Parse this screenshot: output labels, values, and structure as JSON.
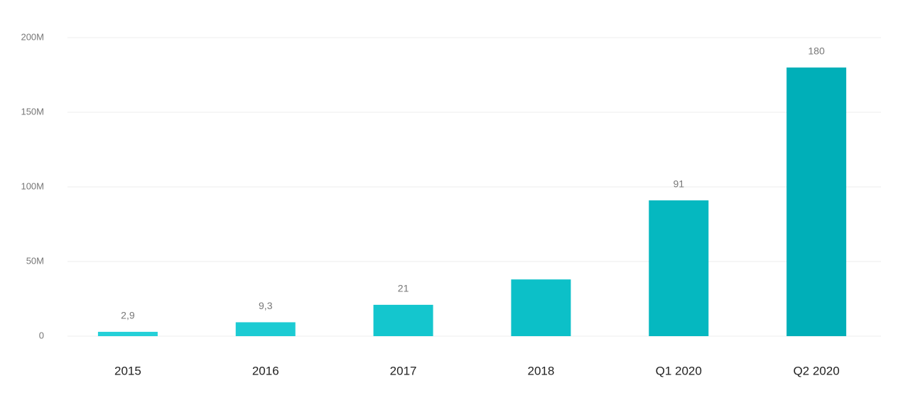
{
  "chart_data": {
    "type": "bar",
    "categories": [
      "2015",
      "2016",
      "2017",
      "2018",
      "Q1 2020",
      "Q2 2020"
    ],
    "values": [
      2900000,
      9300000,
      21000000,
      38000000,
      91000000,
      180000000
    ],
    "value_labels": [
      "2,9",
      "9,3",
      "21",
      null,
      "91",
      "180"
    ],
    "colors": [
      "#24d0d8",
      "#1ccbd3",
      "#14c6ce",
      "#0cc0c8",
      "#05b8c0",
      "#00afb8"
    ],
    "ylim": [
      0,
      200000000
    ],
    "yticks": [
      0,
      {
        "value": 50000000,
        "label": "50M"
      },
      {
        "value": 100000000,
        "label": "100M"
      },
      {
        "value": 150000000,
        "label": "150M"
      },
      {
        "value": 200000000,
        "label": "200M"
      }
    ],
    "grid": true
  }
}
